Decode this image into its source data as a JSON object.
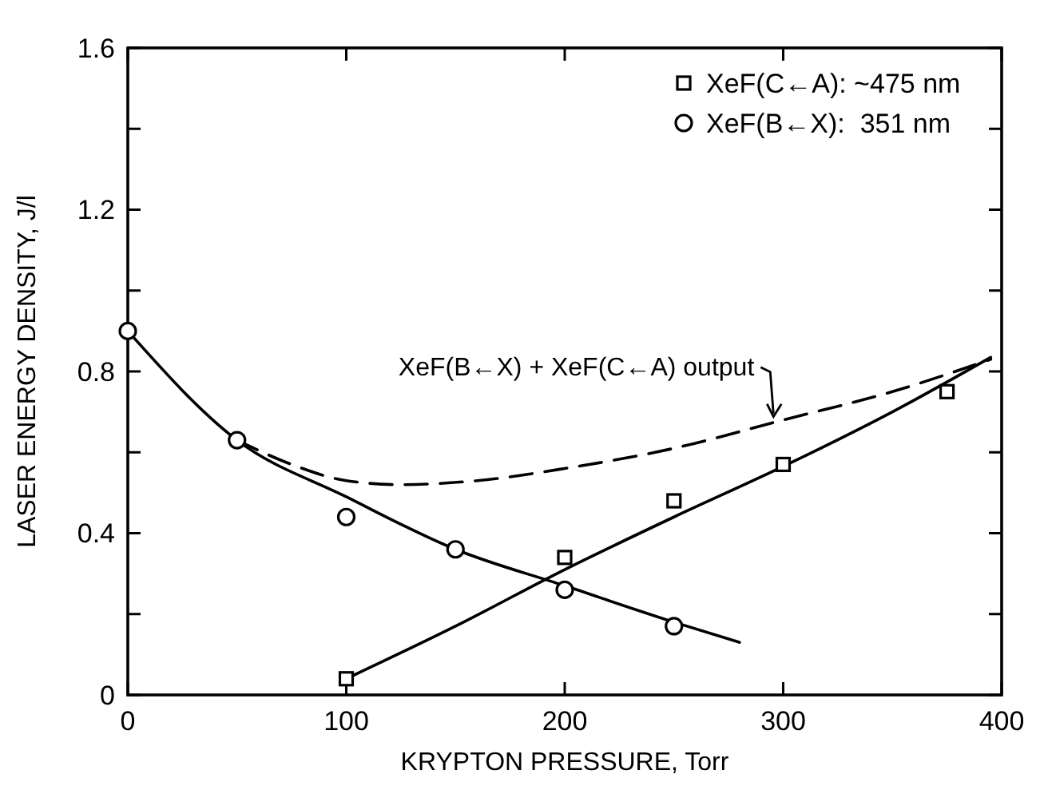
{
  "chart_data": {
    "type": "scatter",
    "xlabel": "KRYPTON PRESSURE, Torr",
    "ylabel": "LASER ENERGY DENSITY, J/l",
    "xlim": [
      0,
      400
    ],
    "xticks": [
      0,
      100,
      200,
      300,
      400
    ],
    "ylim": [
      0,
      1.6
    ],
    "yticks": [
      0,
      {
        "value": 0.2,
        "label": null
      },
      0.4,
      {
        "value": 0.6,
        "label": null
      },
      0.8,
      {
        "value": 1.0,
        "label": null
      },
      1.2,
      {
        "value": 1.4,
        "label": null
      },
      1.6
    ],
    "grid": false,
    "legend": "top right",
    "series": [
      {
        "name": "XeF(C←A): ~475 nm",
        "marker": "square",
        "color": "#000000",
        "x": [
          100,
          200,
          250,
          300,
          375
        ],
        "values": [
          0.04,
          0.34,
          0.48,
          0.57,
          0.75
        ]
      },
      {
        "name": "XeF(B←X):  351 nm",
        "marker": "circle",
        "color": "#000000",
        "x": [
          0,
          50,
          100,
          150,
          200,
          250
        ],
        "values": [
          0.9,
          0.63,
          0.44,
          0.36,
          0.26,
          0.17
        ]
      },
      {
        "type": "line",
        "line_style": "solid",
        "color": "#000000",
        "x": [
          0,
          50,
          100,
          150,
          200,
          250,
          280
        ],
        "values": [
          0.9,
          0.63,
          0.49,
          0.36,
          0.27,
          0.18,
          0.13
        ]
      },
      {
        "type": "line",
        "line_style": "solid",
        "color": "#000000",
        "x": [
          100,
          150,
          200,
          250,
          300,
          350,
          395
        ],
        "values": [
          0.04,
          0.17,
          0.31,
          0.44,
          0.565,
          0.7,
          0.835
        ]
      },
      {
        "type": "line",
        "line_style": "dashed",
        "color": "#000000",
        "x": [
          50,
          75,
          100,
          125,
          160,
          200,
          250,
          300,
          350,
          395
        ],
        "values": [
          0.63,
          0.57,
          0.53,
          0.52,
          0.53,
          0.56,
          0.61,
          0.68,
          0.75,
          0.83
        ]
      }
    ],
    "annotations": [
      {
        "text": "XeF(B←X) + XeF(C←A) output",
        "x": 297,
        "y": 0.68
      }
    ]
  }
}
